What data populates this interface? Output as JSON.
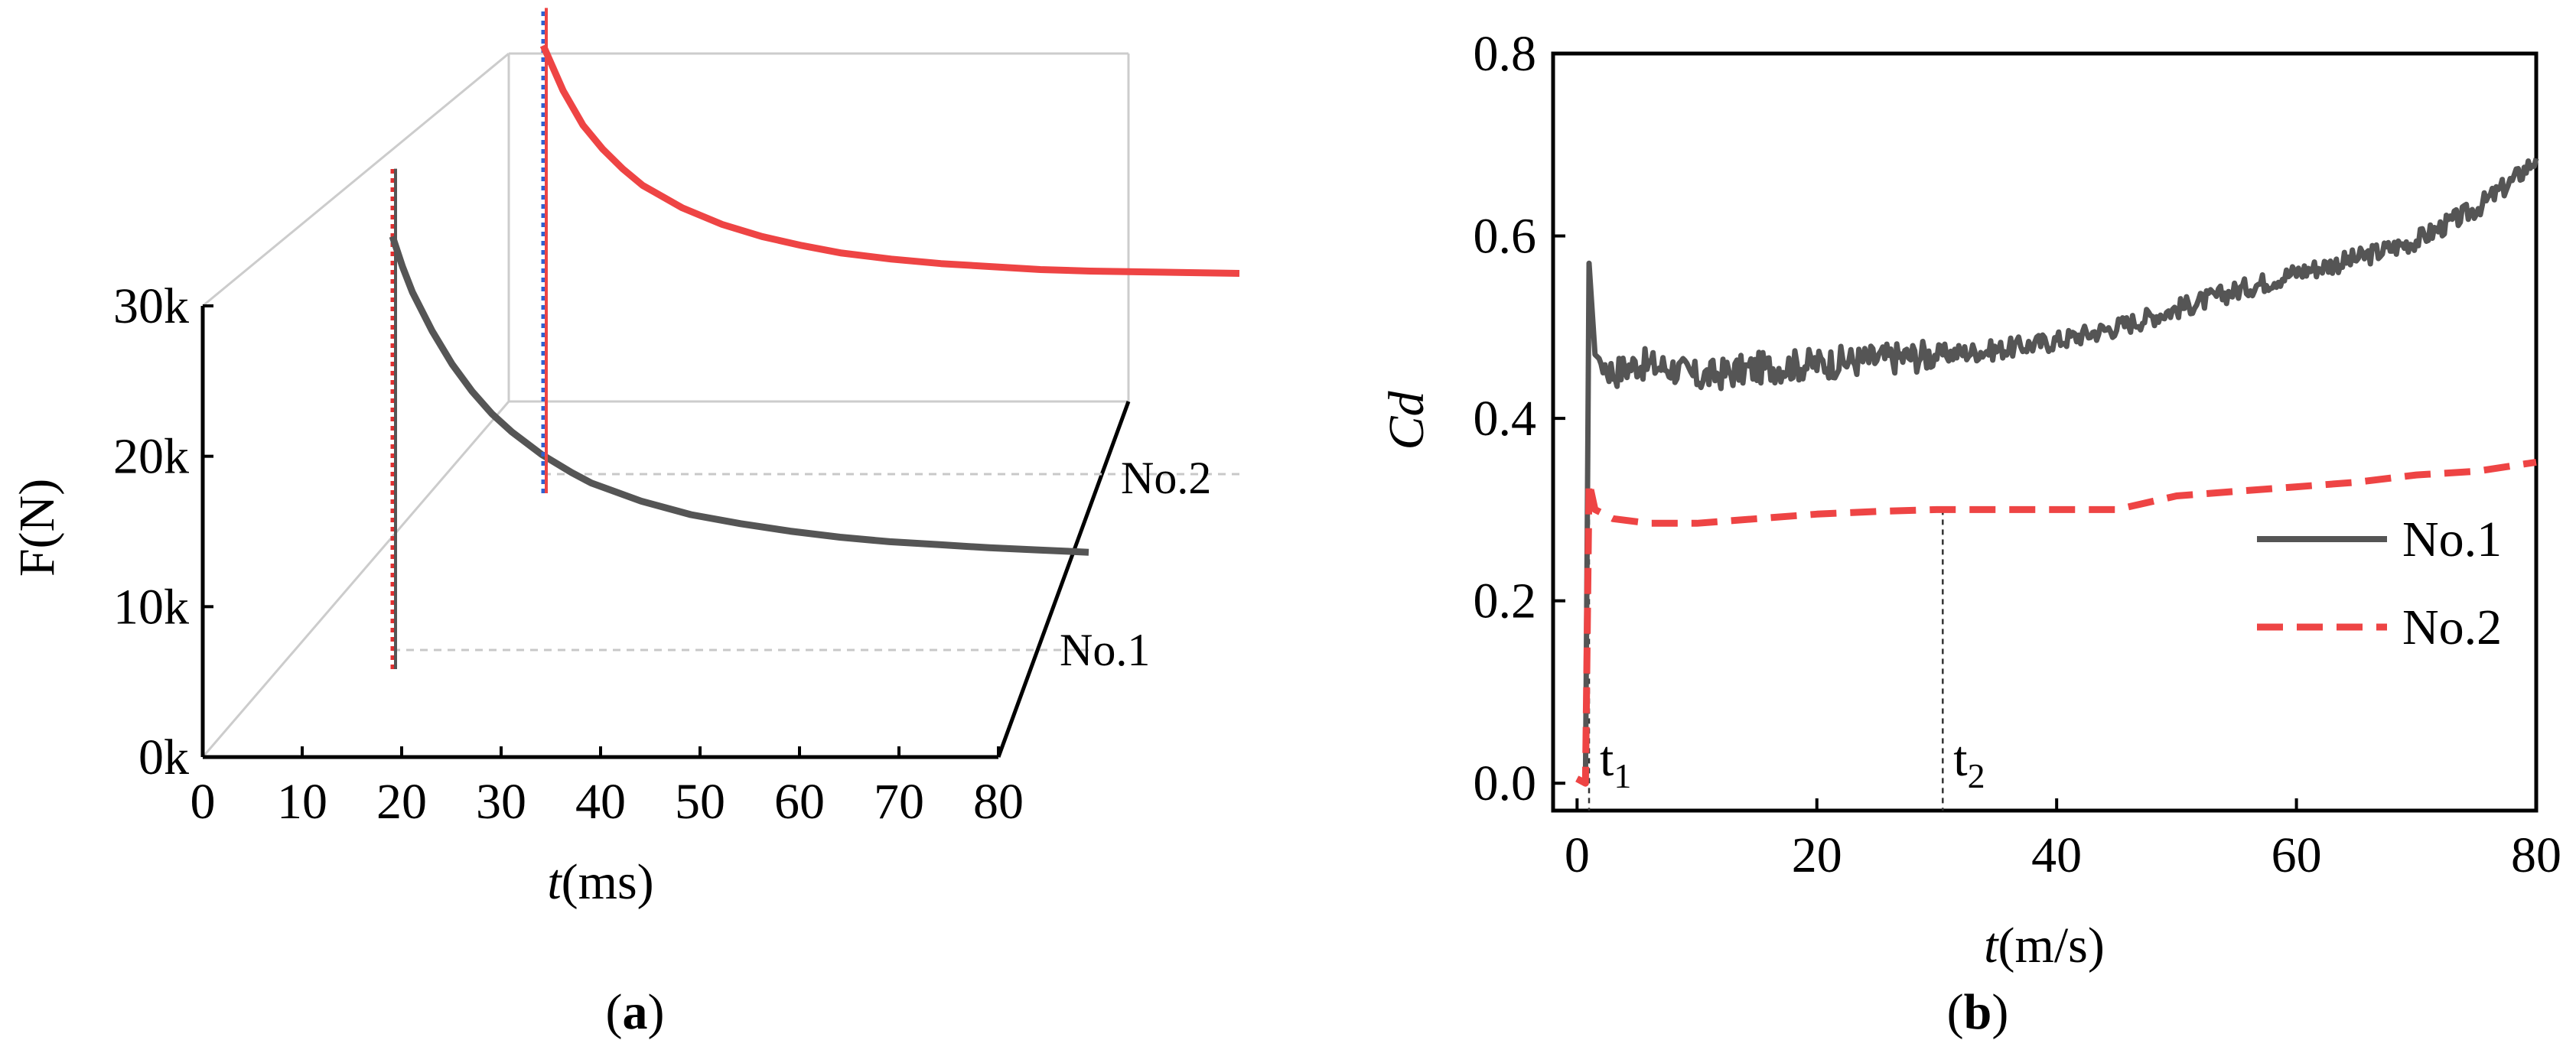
{
  "chart_data": [
    {
      "panel_label": "a",
      "type": "line",
      "projection": "3d",
      "xlabel_italic": "t",
      "xlabel_rest": "(ms)",
      "ylabel": "F(N)",
      "xlim": [
        0,
        80
      ],
      "ylim": [
        0,
        30000
      ],
      "x_ticks": [
        "0",
        "10",
        "20",
        "30",
        "40",
        "50",
        "60",
        "70",
        "80"
      ],
      "y_ticks": [
        "0k",
        "10k",
        "20k",
        "30k"
      ],
      "grid": false,
      "colors": {
        "No.1": "#555555",
        "No.2": "#ee4444"
      },
      "series": [
        {
          "name": "No.1",
          "onset_ms": 10,
          "peak": 32000,
          "points": [
            [
              10,
              27500
            ],
            [
              11,
              25500
            ],
            [
              12,
              23800
            ],
            [
              14,
              21200
            ],
            [
              16,
              19000
            ],
            [
              18,
              17200
            ],
            [
              20,
              15700
            ],
            [
              22,
              14500
            ],
            [
              25,
              13000
            ],
            [
              28,
              11800
            ],
            [
              30,
              11100
            ],
            [
              35,
              9900
            ],
            [
              40,
              9000
            ],
            [
              45,
              8400
            ],
            [
              50,
              7900
            ],
            [
              55,
              7500
            ],
            [
              60,
              7200
            ],
            [
              65,
              7000
            ],
            [
              70,
              6800
            ],
            [
              75,
              6650
            ],
            [
              80,
              6500
            ]
          ]
        },
        {
          "name": "No.2",
          "onset_ms": 10,
          "peak": 31000,
          "points": [
            [
              10,
              28500
            ],
            [
              12,
              25500
            ],
            [
              14,
              23200
            ],
            [
              16,
              21600
            ],
            [
              18,
              20300
            ],
            [
              20,
              19200
            ],
            [
              24,
              17700
            ],
            [
              28,
              16600
            ],
            [
              32,
              15800
            ],
            [
              36,
              15200
            ],
            [
              40,
              14700
            ],
            [
              45,
              14300
            ],
            [
              50,
              14000
            ],
            [
              55,
              13800
            ],
            [
              60,
              13600
            ],
            [
              65,
              13500
            ],
            [
              70,
              13450
            ],
            [
              75,
              13400
            ],
            [
              80,
              13350
            ]
          ]
        }
      ]
    },
    {
      "panel_label": "b",
      "type": "line",
      "xlabel_italic": "t",
      "xlabel_rest": "(m/s)",
      "ylabel_italic": "Cd",
      "xlim": [
        -2,
        80
      ],
      "ylim": [
        -0.03,
        0.8
      ],
      "x_ticks": [
        0,
        20,
        40,
        60,
        80
      ],
      "y_ticks": [
        "0.0",
        "0.2",
        "0.4",
        "0.6",
        "0.8"
      ],
      "grid": false,
      "legend_position": "right-center",
      "annotations": [
        {
          "base": "t",
          "sub": "1",
          "x": 1.0
        },
        {
          "base": "t",
          "sub": "2",
          "x": 30.5,
          "line_top": 0.3
        }
      ],
      "series": [
        {
          "name": "No.1",
          "color": "#555555",
          "style": "solid",
          "points": [
            [
              0,
              0.005
            ],
            [
              0.7,
              0.0
            ],
            [
              1.0,
              0.57
            ],
            [
              1.5,
              0.47
            ],
            [
              3,
              0.45
            ],
            [
              5,
              0.46
            ],
            [
              8,
              0.455
            ],
            [
              10,
              0.445
            ],
            [
              15,
              0.455
            ],
            [
              20,
              0.46
            ],
            [
              25,
              0.465
            ],
            [
              30,
              0.47
            ],
            [
              35,
              0.475
            ],
            [
              40,
              0.485
            ],
            [
              45,
              0.5
            ],
            [
              50,
              0.52
            ],
            [
              55,
              0.54
            ],
            [
              60,
              0.56
            ],
            [
              65,
              0.575
            ],
            [
              70,
              0.595
            ],
            [
              75,
              0.63
            ],
            [
              78,
              0.66
            ],
            [
              80,
              0.685
            ]
          ]
        },
        {
          "name": "No.2",
          "color": "#ee4444",
          "style": "dashed",
          "points": [
            [
              0,
              0.005
            ],
            [
              0.7,
              0.0
            ],
            [
              1.0,
              0.33
            ],
            [
              1.5,
              0.3
            ],
            [
              3,
              0.29
            ],
            [
              6,
              0.285
            ],
            [
              10,
              0.285
            ],
            [
              15,
              0.29
            ],
            [
              20,
              0.295
            ],
            [
              25,
              0.298
            ],
            [
              30,
              0.3
            ],
            [
              35,
              0.3
            ],
            [
              40,
              0.3
            ],
            [
              45,
              0.3
            ],
            [
              50,
              0.315
            ],
            [
              55,
              0.32
            ],
            [
              60,
              0.325
            ],
            [
              65,
              0.33
            ],
            [
              70,
              0.338
            ],
            [
              75,
              0.342
            ],
            [
              80,
              0.352
            ]
          ]
        }
      ]
    }
  ]
}
